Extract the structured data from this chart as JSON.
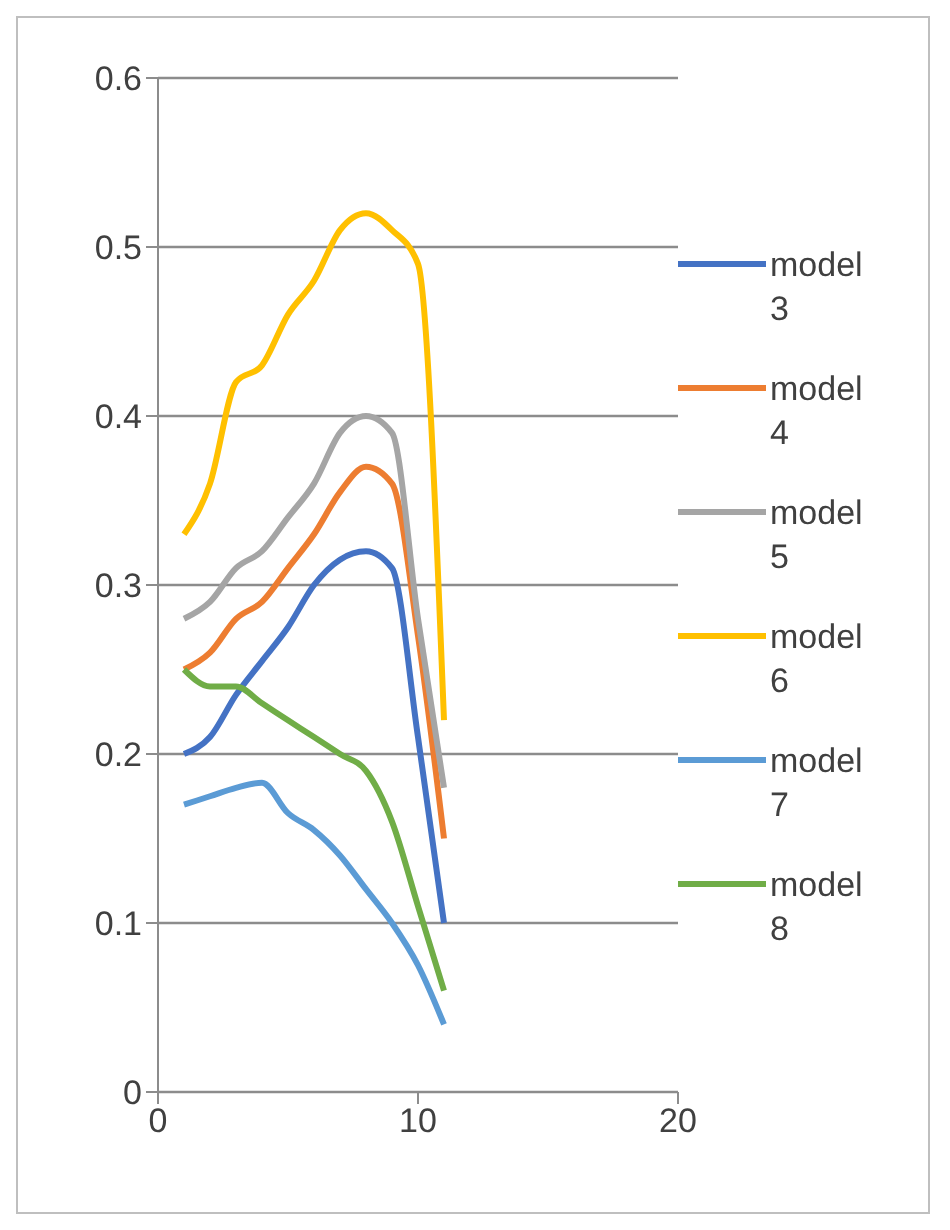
{
  "chart_data": {
    "type": "line",
    "x": [
      1,
      2,
      3,
      4,
      5,
      6,
      7,
      8,
      9,
      10,
      11
    ],
    "series": [
      {
        "name": "model 3",
        "color": "#4472c4",
        "values": [
          0.2,
          0.21,
          0.235,
          0.255,
          0.275,
          0.3,
          0.315,
          0.32,
          0.31,
          0.21,
          0.1
        ]
      },
      {
        "name": "model 4",
        "color": "#ed7d31",
        "values": [
          0.25,
          0.26,
          0.28,
          0.29,
          0.31,
          0.33,
          0.355,
          0.37,
          0.36,
          0.27,
          0.15
        ]
      },
      {
        "name": "model 5",
        "color": "#a5a5a5",
        "values": [
          0.28,
          0.29,
          0.31,
          0.32,
          0.34,
          0.36,
          0.39,
          0.4,
          0.39,
          0.28,
          0.18
        ]
      },
      {
        "name": "model 6",
        "color": "#ffc000",
        "values": [
          0.33,
          0.36,
          0.42,
          0.43,
          0.46,
          0.48,
          0.51,
          0.52,
          0.51,
          0.49,
          0.22
        ]
      },
      {
        "name": "model 7",
        "color": "#5b9bd5",
        "values": [
          0.17,
          0.175,
          0.18,
          0.183,
          0.165,
          0.155,
          0.14,
          0.12,
          0.1,
          0.075,
          0.04
        ]
      },
      {
        "name": "model 8",
        "color": "#70ad47",
        "values": [
          0.25,
          0.24,
          0.24,
          0.23,
          0.22,
          0.21,
          0.2,
          0.19,
          0.16,
          0.11,
          0.06
        ]
      }
    ],
    "xlim": [
      0,
      20
    ],
    "xticks": [
      0,
      10,
      20
    ],
    "ylim": [
      0,
      0.6
    ],
    "yticks": [
      0,
      0.1,
      0.2,
      0.3,
      0.4,
      0.5,
      0.6
    ],
    "grid": "y",
    "legend": "right",
    "marker": "none",
    "line_style": "solid"
  }
}
